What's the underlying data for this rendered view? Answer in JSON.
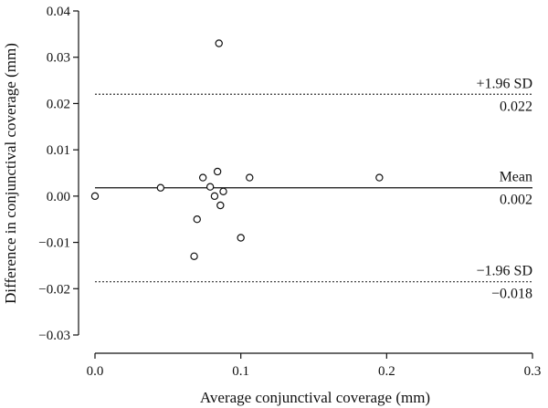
{
  "chart_data": {
    "type": "scatter",
    "title": "",
    "xlabel": "Average conjunctival coverage (mm)",
    "ylabel": "Difference in conjunctival coverage (mm)",
    "xlim": [
      0.0,
      0.3
    ],
    "ylim": [
      -0.03,
      0.04
    ],
    "x_ticks": [
      0.0,
      0.1,
      0.2,
      0.3
    ],
    "x_tick_labels": [
      "0.0",
      "0.1",
      "0.2",
      "0.3"
    ],
    "y_ticks": [
      -0.03,
      -0.02,
      -0.01,
      0.0,
      0.01,
      0.02,
      0.03,
      0.04
    ],
    "y_tick_labels": [
      "−0.03",
      "−0.02",
      "−0.01",
      "0.00",
      "0.01",
      "0.02",
      "0.03",
      "0.04"
    ],
    "grid": false,
    "points": [
      {
        "x": 0.0,
        "y": 0.0
      },
      {
        "x": 0.045,
        "y": 0.0018
      },
      {
        "x": 0.068,
        "y": -0.013
      },
      {
        "x": 0.07,
        "y": -0.005
      },
      {
        "x": 0.074,
        "y": 0.004
      },
      {
        "x": 0.079,
        "y": 0.002
      },
      {
        "x": 0.082,
        "y": 0.0
      },
      {
        "x": 0.084,
        "y": 0.0053
      },
      {
        "x": 0.085,
        "y": 0.033
      },
      {
        "x": 0.086,
        "y": -0.002
      },
      {
        "x": 0.088,
        "y": 0.001
      },
      {
        "x": 0.1,
        "y": -0.009
      },
      {
        "x": 0.106,
        "y": 0.004
      },
      {
        "x": 0.195,
        "y": 0.004
      }
    ],
    "reference_lines": [
      {
        "label": "+1.96 SD",
        "value_label": "0.022",
        "y": 0.022,
        "style": "dotted"
      },
      {
        "label": "Mean",
        "value_label": "0.002",
        "y": 0.0018,
        "style": "solid"
      },
      {
        "label": "−1.96 SD",
        "value_label": "−0.018",
        "y": -0.0185,
        "style": "dotted"
      }
    ]
  }
}
